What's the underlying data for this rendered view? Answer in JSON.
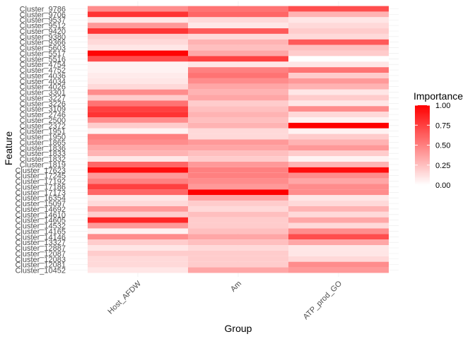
{
  "chart_data": {
    "type": "heatmap",
    "xlabel": "Group",
    "ylabel": "Feature",
    "x": [
      "Host_AFDW",
      "Am",
      "ATP_prod_GO"
    ],
    "y": [
      "Cluster_9786",
      "Cluster_9706",
      "Cluster_9537",
      "Cluster_9512",
      "Cluster_9420",
      "Cluster_9380",
      "Cluster_9366",
      "Cluster_5603",
      "Cluster_5517",
      "Cluster_5516",
      "Cluster_4754",
      "Cluster_4752",
      "Cluster_4036",
      "Cluster_4034",
      "Cluster_4026",
      "Cluster_3301",
      "Cluster_3227",
      "Cluster_3226",
      "Cluster_3109",
      "Cluster_2746",
      "Cluster_2500",
      "Cluster_2372",
      "Cluster_1951",
      "Cluster_1950",
      "Cluster_1865",
      "Cluster_1836",
      "Cluster_1833",
      "Cluster_1832",
      "Cluster_1819",
      "Cluster_17623",
      "Cluster_17245",
      "Cluster_17192",
      "Cluster_17186",
      "Cluster_17173",
      "Cluster_16354",
      "Cluster_15097",
      "Cluster_14692",
      "Cluster_14610",
      "Cluster_14605",
      "Cluster_14532",
      "Cluster_14165",
      "Cluster_14146",
      "Cluster_13327",
      "Cluster_12887",
      "Cluster_12087",
      "Cluster_12083",
      "Cluster_12081",
      "Cluster_10452"
    ],
    "values": [
      [
        0.45,
        0.55,
        0.7
      ],
      [
        0.8,
        0.6,
        0.3
      ],
      [
        0.1,
        0.15,
        0.1
      ],
      [
        0.4,
        0.1,
        0.15
      ],
      [
        0.8,
        0.65,
        0.2
      ],
      [
        0.2,
        0.15,
        0.15
      ],
      [
        0.15,
        0.3,
        0.65
      ],
      [
        0.1,
        0.25,
        0.25
      ],
      [
        0.98,
        0.35,
        0.2
      ],
      [
        0.7,
        0.75,
        0.0
      ],
      [
        0.05,
        0.1,
        0.1
      ],
      [
        0.05,
        0.5,
        0.55
      ],
      [
        0.08,
        0.55,
        0.2
      ],
      [
        0.1,
        0.45,
        0.4
      ],
      [
        0.15,
        0.35,
        0.3
      ],
      [
        0.45,
        0.3,
        0.1
      ],
      [
        0.2,
        0.35,
        0.2
      ],
      [
        0.55,
        0.2,
        0.1
      ],
      [
        0.75,
        0.25,
        0.45
      ],
      [
        0.8,
        0.3,
        0.15
      ],
      [
        0.45,
        0.25,
        0.05
      ],
      [
        0.2,
        0.3,
        1.0
      ],
      [
        0.05,
        0.15,
        0.05
      ],
      [
        0.5,
        0.15,
        0.2
      ],
      [
        0.45,
        0.4,
        0.3
      ],
      [
        0.35,
        0.35,
        0.4
      ],
      [
        0.3,
        0.25,
        0.2
      ],
      [
        0.1,
        0.2,
        0.05
      ],
      [
        0.6,
        0.4,
        0.3
      ],
      [
        0.95,
        0.5,
        0.95
      ],
      [
        0.4,
        0.5,
        0.45
      ],
      [
        0.5,
        0.45,
        0.35
      ],
      [
        0.75,
        0.4,
        0.45
      ],
      [
        0.6,
        1.0,
        0.45
      ],
      [
        0.1,
        0.35,
        0.1
      ],
      [
        0.15,
        0.2,
        0.15
      ],
      [
        0.4,
        0.15,
        0.3
      ],
      [
        0.2,
        0.25,
        0.15
      ],
      [
        0.85,
        0.2,
        0.35
      ],
      [
        0.4,
        0.2,
        0.15
      ],
      [
        0.05,
        0.25,
        0.45
      ],
      [
        0.45,
        0.35,
        0.7
      ],
      [
        0.2,
        0.25,
        0.35
      ],
      [
        0.1,
        0.15,
        0.1
      ],
      [
        0.2,
        0.2,
        0.1
      ],
      [
        0.15,
        0.2,
        0.15
      ],
      [
        0.15,
        0.2,
        0.45
      ],
      [
        0.1,
        0.35,
        0.4
      ]
    ],
    "legend": {
      "title": "Importance",
      "ticks": [
        "0.00",
        "0.25",
        "0.50",
        "0.75",
        "1.00"
      ],
      "placement": "right"
    },
    "color_scale": {
      "low": "#ffffff",
      "high": "#ff0000"
    },
    "grid": true
  }
}
